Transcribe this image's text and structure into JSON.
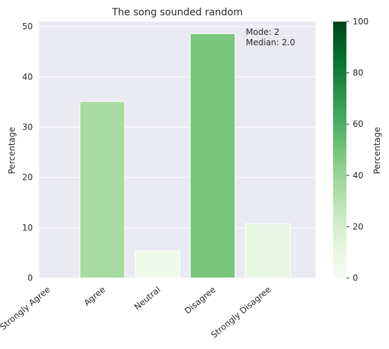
{
  "chart_data": {
    "type": "bar",
    "title": "The song sounded random",
    "ylabel": "Percentage",
    "xlabel": "",
    "categories": [
      "Strongly Agree",
      "Agree",
      "Neutral",
      "Disagree",
      "Strongly Disagree"
    ],
    "values": [
      0,
      35.1,
      5.4,
      48.6,
      10.8
    ],
    "ylim": [
      0,
      51
    ],
    "yticks": [
      0,
      10,
      20,
      30,
      40,
      50
    ],
    "grid": true,
    "annotation_lines": [
      "Mode: 2",
      "Median: 2.0"
    ],
    "colorbar": {
      "label": "Percentage",
      "range": [
        0,
        100
      ],
      "ticks": [
        0,
        20,
        40,
        60,
        80,
        100
      ],
      "colormap": "Greens"
    },
    "colors": {
      "background": "#eaeaf2",
      "grid": "#ffffff",
      "bar_edge": "#ffffff"
    }
  }
}
